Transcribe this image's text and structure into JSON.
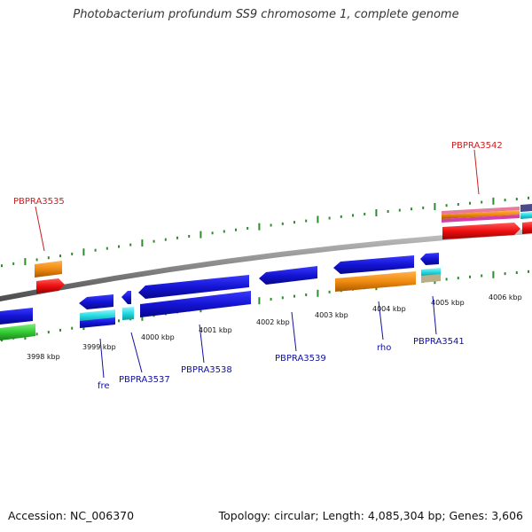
{
  "title": "Photobacterium profundum SS9 chromosome 1, complete genome",
  "footer": {
    "accession": "Accession: NC_006370",
    "topology": "Topology: circular; Length: 4,085,304 bp; Genes: 3,606"
  },
  "colors": {
    "backbone": "#8a8a8a",
    "tick_dots": "#2e8b2e",
    "blue_gene": "#1414d4",
    "cyan_gene": "#22d8e0",
    "orange_gene": "#f08a10",
    "red_gene": "#ee1010",
    "green_gene": "#33cc33",
    "label_red": "#cc1f1f",
    "label_blue": "#1010a0"
  },
  "kbp_ticks": [
    "3998 kbp",
    "3999 kbp",
    "4000 kbp",
    "4001 kbp",
    "4002 kbp",
    "4003 kbp",
    "4004 kbp",
    "4005 kbp",
    "4006 kbp"
  ],
  "gene_labels": [
    "PBPRA3535",
    "PBPRA3542",
    "fre",
    "PBPRA3537",
    "PBPRA3538",
    "PBPRA3539",
    "rho",
    "PBPRA3541"
  ]
}
